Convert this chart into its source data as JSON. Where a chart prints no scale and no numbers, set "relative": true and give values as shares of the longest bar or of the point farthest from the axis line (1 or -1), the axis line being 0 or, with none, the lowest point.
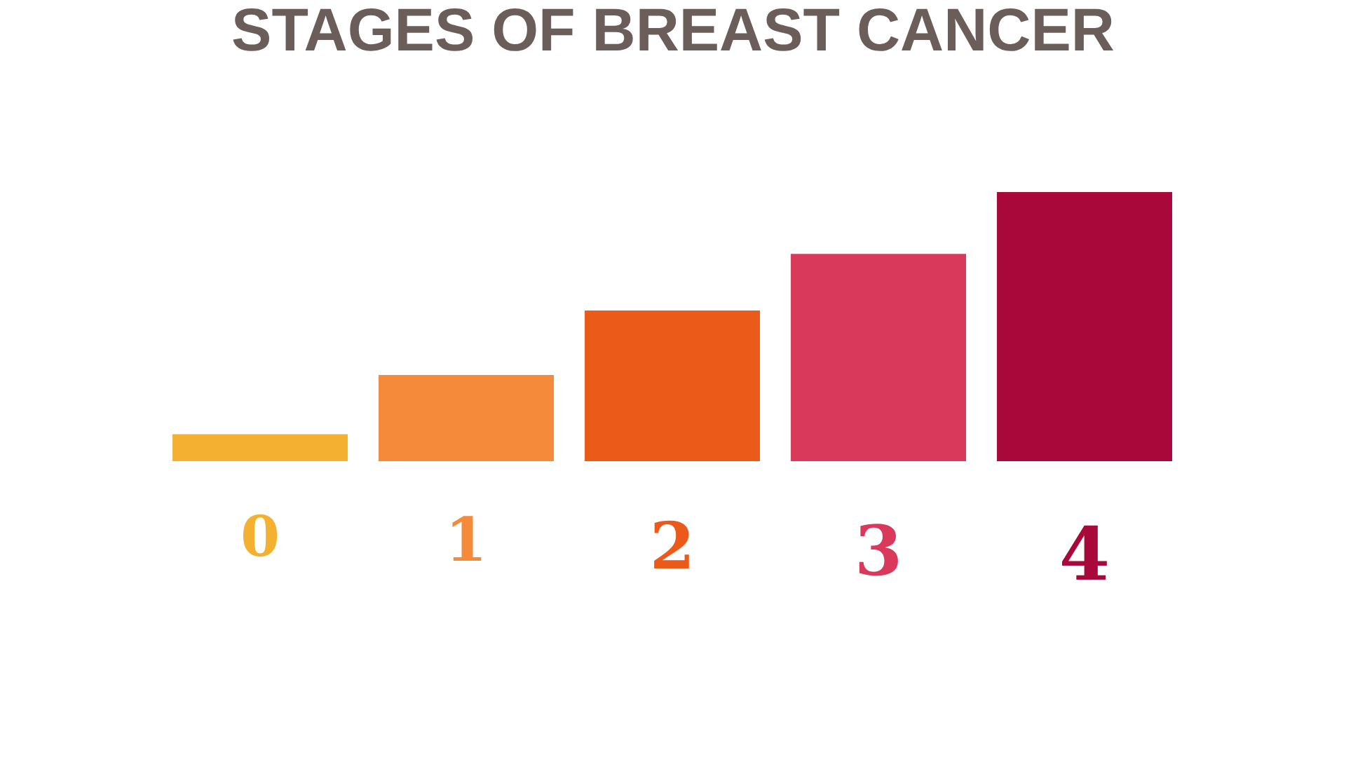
{
  "chart_data": {
    "type": "bar",
    "title": "STAGES OF BREAST CANCER",
    "categories": [
      "0",
      "1",
      "2",
      "3",
      "4"
    ],
    "relative": true,
    "values": [
      0.1,
      0.32,
      0.56,
      0.77,
      1
    ],
    "colors": [
      "#f4b030",
      "#f58a3a",
      "#ec5a1a",
      "#d93a5c",
      "#a8083a"
    ],
    "grid": false,
    "legend": false
  }
}
